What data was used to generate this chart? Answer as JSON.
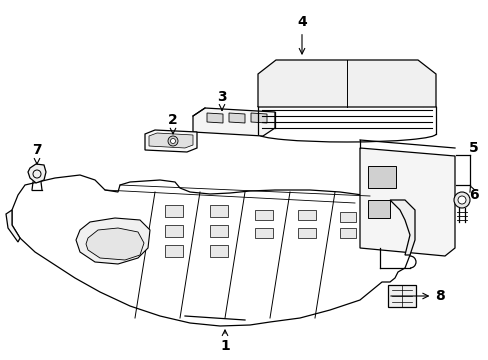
{
  "background_color": "#ffffff",
  "line_color": "#000000",
  "figsize": [
    4.89,
    3.6
  ],
  "dpi": 100,
  "label_fontsize": 10
}
